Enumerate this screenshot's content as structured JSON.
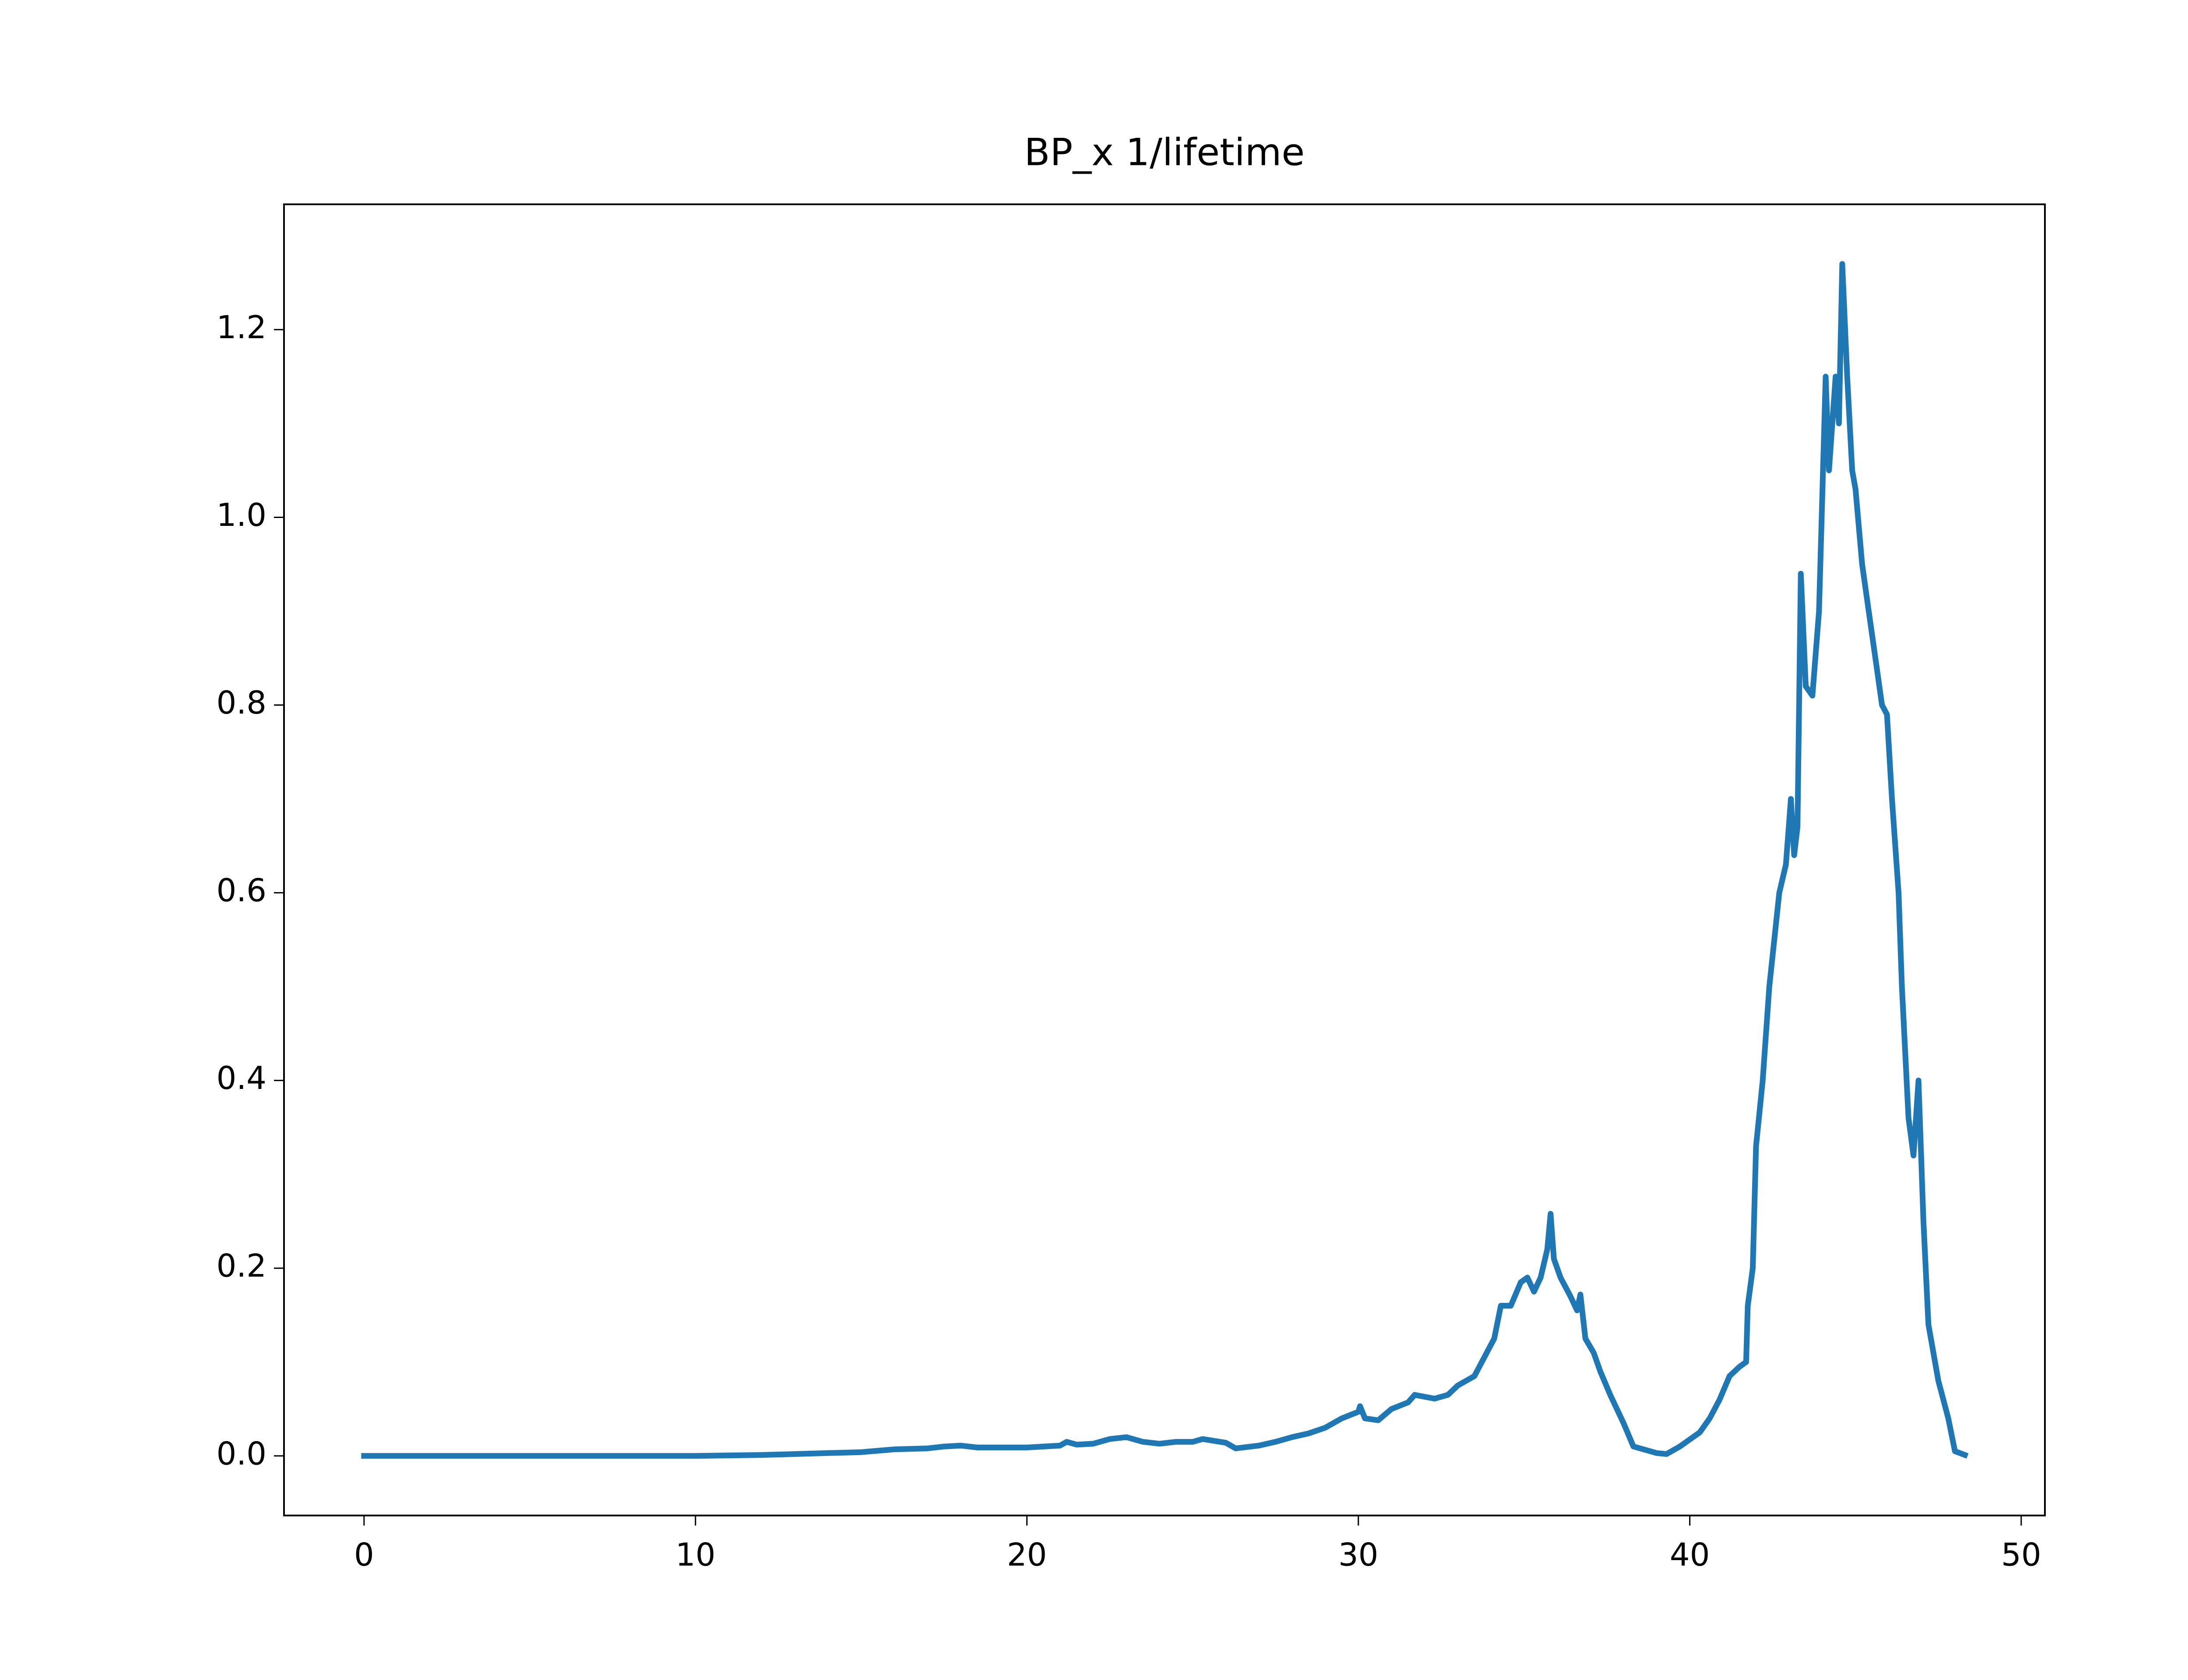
{
  "chart_data": {
    "type": "line",
    "title": "BP_x 1/lifetime",
    "x": [
      0,
      5,
      10,
      12,
      13,
      14,
      15,
      16,
      17,
      17.5,
      18,
      18.5,
      19,
      20,
      21,
      21.2,
      21.5,
      22,
      22.5,
      23,
      23.5,
      24,
      24.5,
      25,
      25.3,
      26,
      26.3,
      27,
      27.5,
      28,
      28.5,
      29,
      29.5,
      30,
      30.05,
      30.2,
      30.6,
      31,
      31.5,
      31.7,
      32,
      32.3,
      32.7,
      33,
      33.5,
      33.8,
      34.1,
      34.3,
      34.6,
      34.9,
      35.1,
      35.3,
      35.5,
      35.7,
      35.8,
      35.9,
      36.1,
      36.4,
      36.6,
      36.7,
      36.85,
      37.1,
      37.3,
      37.6,
      38,
      38.3,
      39,
      39.3,
      39.7,
      40.3,
      40.6,
      40.9,
      41.2,
      41.5,
      41.7,
      41.75,
      41.9,
      42,
      42.2,
      42.4,
      42.7,
      42.9,
      43.05,
      43.15,
      43.25,
      43.35,
      43.5,
      43.7,
      43.9,
      44.1,
      44.2,
      44.4,
      44.5,
      44.6,
      44.75,
      44.9,
      45,
      45.2,
      45.4,
      45.6,
      45.8,
      45.95,
      46.1,
      46.3,
      46.4,
      46.6,
      46.75,
      46.9,
      47.05,
      47.2,
      47.5,
      47.8,
      48,
      48.3
    ],
    "series": [
      {
        "color": "#1f77b4",
        "values": [
          0,
          0,
          0,
          0.001,
          0.002,
          0.003,
          0.004,
          0.007,
          0.008,
          0.01,
          0.011,
          0.009,
          0.009,
          0.009,
          0.011,
          0.015,
          0.012,
          0.013,
          0.018,
          0.02,
          0.015,
          0.013,
          0.015,
          0.015,
          0.018,
          0.014,
          0.008,
          0.011,
          0.015,
          0.02,
          0.024,
          0.03,
          0.04,
          0.047,
          0.053,
          0.04,
          0.038,
          0.05,
          0.057,
          0.065,
          0.063,
          0.061,
          0.065,
          0.075,
          0.085,
          0.105,
          0.125,
          0.16,
          0.16,
          0.185,
          0.19,
          0.175,
          0.19,
          0.22,
          0.258,
          0.21,
          0.19,
          0.17,
          0.155,
          0.172,
          0.125,
          0.11,
          0.09,
          0.065,
          0.035,
          0.01,
          0.003,
          0.002,
          0.01,
          0.025,
          0.04,
          0.06,
          0.085,
          0.095,
          0.1,
          0.16,
          0.2,
          0.33,
          0.4,
          0.5,
          0.6,
          0.63,
          0.7,
          0.64,
          0.67,
          0.94,
          0.82,
          0.81,
          0.9,
          1.15,
          1.05,
          1.15,
          1.1,
          1.27,
          1.15,
          1.05,
          1.03,
          0.95,
          0.9,
          0.85,
          0.8,
          0.79,
          0.7,
          0.6,
          0.5,
          0.36,
          0.32,
          0.4,
          0.25,
          0.14,
          0.08,
          0.04,
          0.005,
          0.001
        ]
      }
    ],
    "xlim": [
      -2.415,
      50.715
    ],
    "xticks": [
      0,
      10,
      20,
      30,
      40,
      50
    ],
    "ylim": [
      -0.0635,
      1.3335
    ],
    "yticks": [
      {
        "value": 0,
        "label": "0.0"
      },
      0.2,
      0.4,
      0.6,
      0.8,
      {
        "value": 1,
        "label": "1.0"
      },
      1.2
    ]
  }
}
